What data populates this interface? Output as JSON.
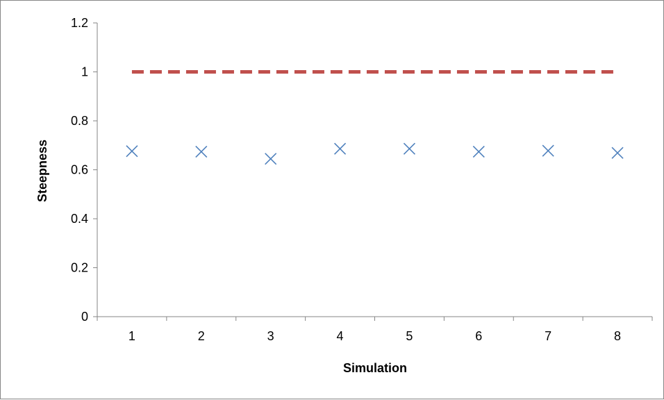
{
  "chart_data": {
    "type": "scatter",
    "title": "",
    "xlabel": "Simulation",
    "ylabel": "Steepness",
    "x": [
      1,
      2,
      3,
      4,
      5,
      6,
      7,
      8
    ],
    "xlim": [
      0.5,
      8.5
    ],
    "ylim": [
      0,
      1.2
    ],
    "yticks": [
      "0",
      "0.2",
      "0.4",
      "0.6",
      "0.8",
      "1",
      "1.2"
    ],
    "xticks": [
      "1",
      "2",
      "3",
      "4",
      "5",
      "6",
      "7",
      "8"
    ],
    "grid": false,
    "legend": "none",
    "series": [
      {
        "type": "scatter",
        "marker": "x",
        "color": "#4F81BD",
        "values": [
          0.676,
          0.674,
          0.645,
          0.686,
          0.686,
          0.674,
          0.678,
          0.669
        ]
      },
      {
        "type": "line",
        "style": "dashed",
        "color": "#C0504D",
        "values": [
          1,
          1,
          1,
          1,
          1,
          1,
          1,
          1
        ]
      }
    ]
  }
}
